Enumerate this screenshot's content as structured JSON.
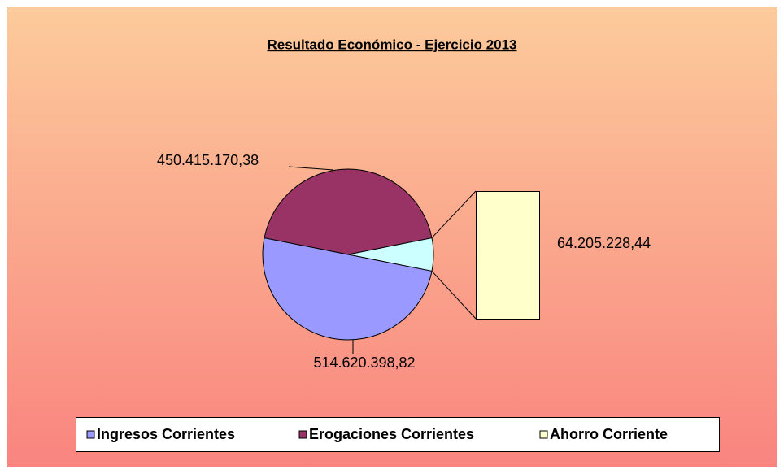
{
  "chart_data": {
    "type": "pie",
    "title": "Resultado Económico - Ejercicio 2013",
    "categories": [
      "Ingresos Corrientes",
      "Erogaciones Corrientes",
      "Ahorro Corriente"
    ],
    "values": [
      514620398.82,
      450415170.38,
      64205228.44
    ],
    "value_labels": [
      "514.620.398,82",
      "450.415.170,38",
      "64.205.228,44"
    ],
    "colors": [
      "#9999ff",
      "#993366",
      "#ccffff"
    ],
    "legend_colors": [
      "#9999ff",
      "#993366",
      "#ffffcc"
    ],
    "legend": "bottom"
  }
}
